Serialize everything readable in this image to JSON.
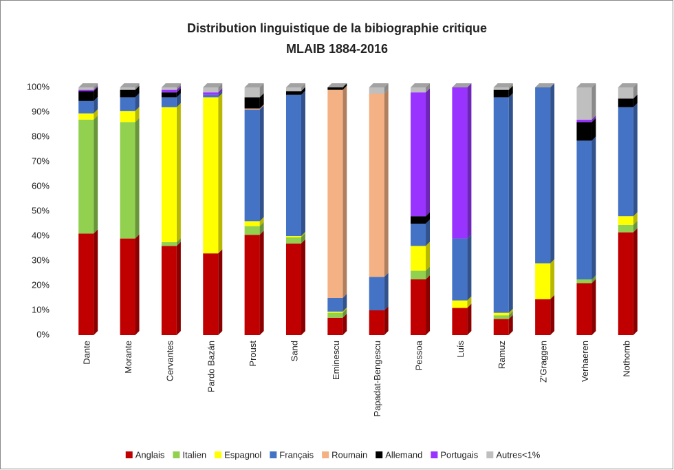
{
  "chart_data": {
    "type": "stacked-bar-3d",
    "title": "Distribution linguistique de la bibiographie critique",
    "subtitle": "MLAIB 1884-2016",
    "categories": [
      "Dante",
      "Morante",
      "Cervantes",
      "Pardo Bazán",
      "Proust",
      "Sand",
      "Eminescu",
      "Papadat-Bengescu",
      "Pessoa",
      "Luís",
      "Ramuz",
      "Z'Graggen",
      "Verhaeren",
      "Nothomb"
    ],
    "series": [
      {
        "name": "Anglais",
        "color": "#c00000",
        "values": [
          41,
          39,
          36,
          33,
          40.5,
          37,
          7,
          10,
          22.5,
          11,
          6.5,
          14.5,
          21,
          41.5
        ]
      },
      {
        "name": "Italien",
        "color": "#92d050",
        "values": [
          46,
          47,
          1.5,
          0,
          3.5,
          2.5,
          2,
          0,
          3.5,
          0,
          1.5,
          0,
          1.5,
          3
        ]
      },
      {
        "name": "Espagnol",
        "color": "#ffff00",
        "values": [
          2.5,
          4.5,
          54.5,
          63,
          2,
          0.5,
          0.5,
          0,
          10,
          3,
          1,
          14.5,
          0,
          3.5
        ]
      },
      {
        "name": "Français",
        "color": "#4472c4",
        "values": [
          5,
          5.5,
          4,
          1,
          45,
          57,
          5.5,
          13.5,
          9,
          25,
          87,
          71,
          56,
          44
        ]
      },
      {
        "name": "Roumain",
        "color": "#f4b183",
        "values": [
          0,
          0,
          0,
          0,
          0.5,
          0,
          84,
          74,
          0,
          0,
          0,
          0,
          0,
          0
        ]
      },
      {
        "name": "Allemand",
        "color": "#000000",
        "values": [
          4,
          3,
          2,
          0,
          4.5,
          1.5,
          1,
          0,
          3,
          0,
          3,
          0,
          7.5,
          3.5
        ]
      },
      {
        "name": "Portugais",
        "color": "#9933ff",
        "values": [
          0.5,
          0,
          1,
          1,
          0,
          0,
          0,
          0,
          50,
          61,
          0,
          0,
          1,
          0
        ]
      },
      {
        "name": "Autres<1%",
        "color": "#bfbfbf",
        "values": [
          1,
          1,
          1,
          2,
          4,
          1.5,
          0,
          2.5,
          2,
          0,
          1,
          0,
          13,
          4.5
        ]
      }
    ],
    "ylim": [
      0,
      100
    ],
    "yticks": [
      {
        "value": 0,
        "label": "0%"
      },
      {
        "value": 10,
        "label": "10%"
      },
      {
        "value": 20,
        "label": "20%"
      },
      {
        "value": 30,
        "label": "30%"
      },
      {
        "value": 40,
        "label": "40%"
      },
      {
        "value": 50,
        "label": "50%"
      },
      {
        "value": 60,
        "label": "60%"
      },
      {
        "value": 70,
        "label": "70%"
      },
      {
        "value": 80,
        "label": "80%"
      },
      {
        "value": 90,
        "label": "90%"
      },
      {
        "value": 100,
        "label": "100%"
      }
    ],
    "grid": false
  }
}
